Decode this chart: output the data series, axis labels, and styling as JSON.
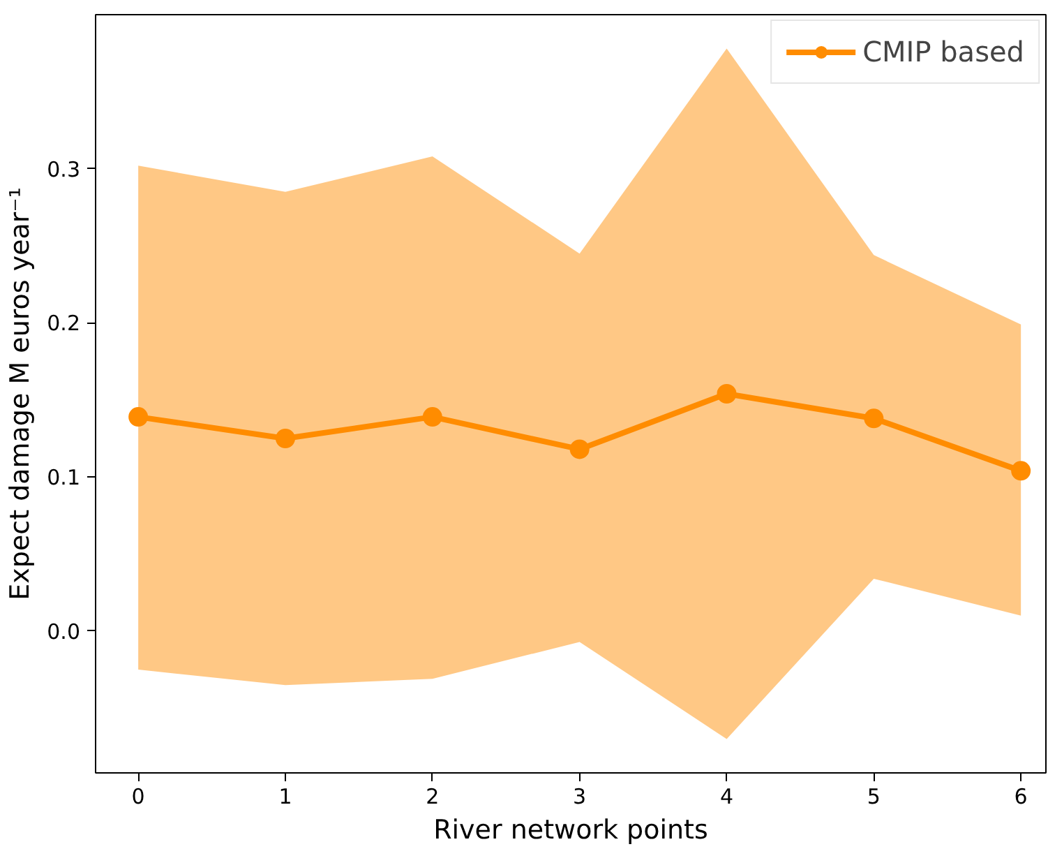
{
  "chart_data": {
    "type": "line",
    "xlabel": "River network points",
    "ylabel": "Expect damage M euros year⁻¹",
    "x": [
      0,
      1,
      2,
      3,
      4,
      5,
      6
    ],
    "series": [
      {
        "name": "CMIP based",
        "color": "#ff8c00",
        "values": [
          0.139,
          0.125,
          0.139,
          0.118,
          0.154,
          0.138,
          0.104
        ],
        "lower": [
          -0.025,
          -0.035,
          -0.031,
          -0.007,
          -0.07,
          0.034,
          0.01
        ],
        "upper": [
          0.302,
          0.285,
          0.308,
          0.245,
          0.378,
          0.244,
          0.199
        ]
      }
    ],
    "xlim": [
      -0.29,
      6.17
    ],
    "ylim": [
      -0.092,
      0.4
    ],
    "xticks": [
      0,
      1,
      2,
      3,
      4,
      5,
      6
    ],
    "yticks": [
      {
        "value": 0,
        "label": "0.0"
      },
      0.1,
      0.2,
      0.3
    ],
    "marker": "circle",
    "line_style": "solid",
    "legend": "top right",
    "grid": false
  }
}
